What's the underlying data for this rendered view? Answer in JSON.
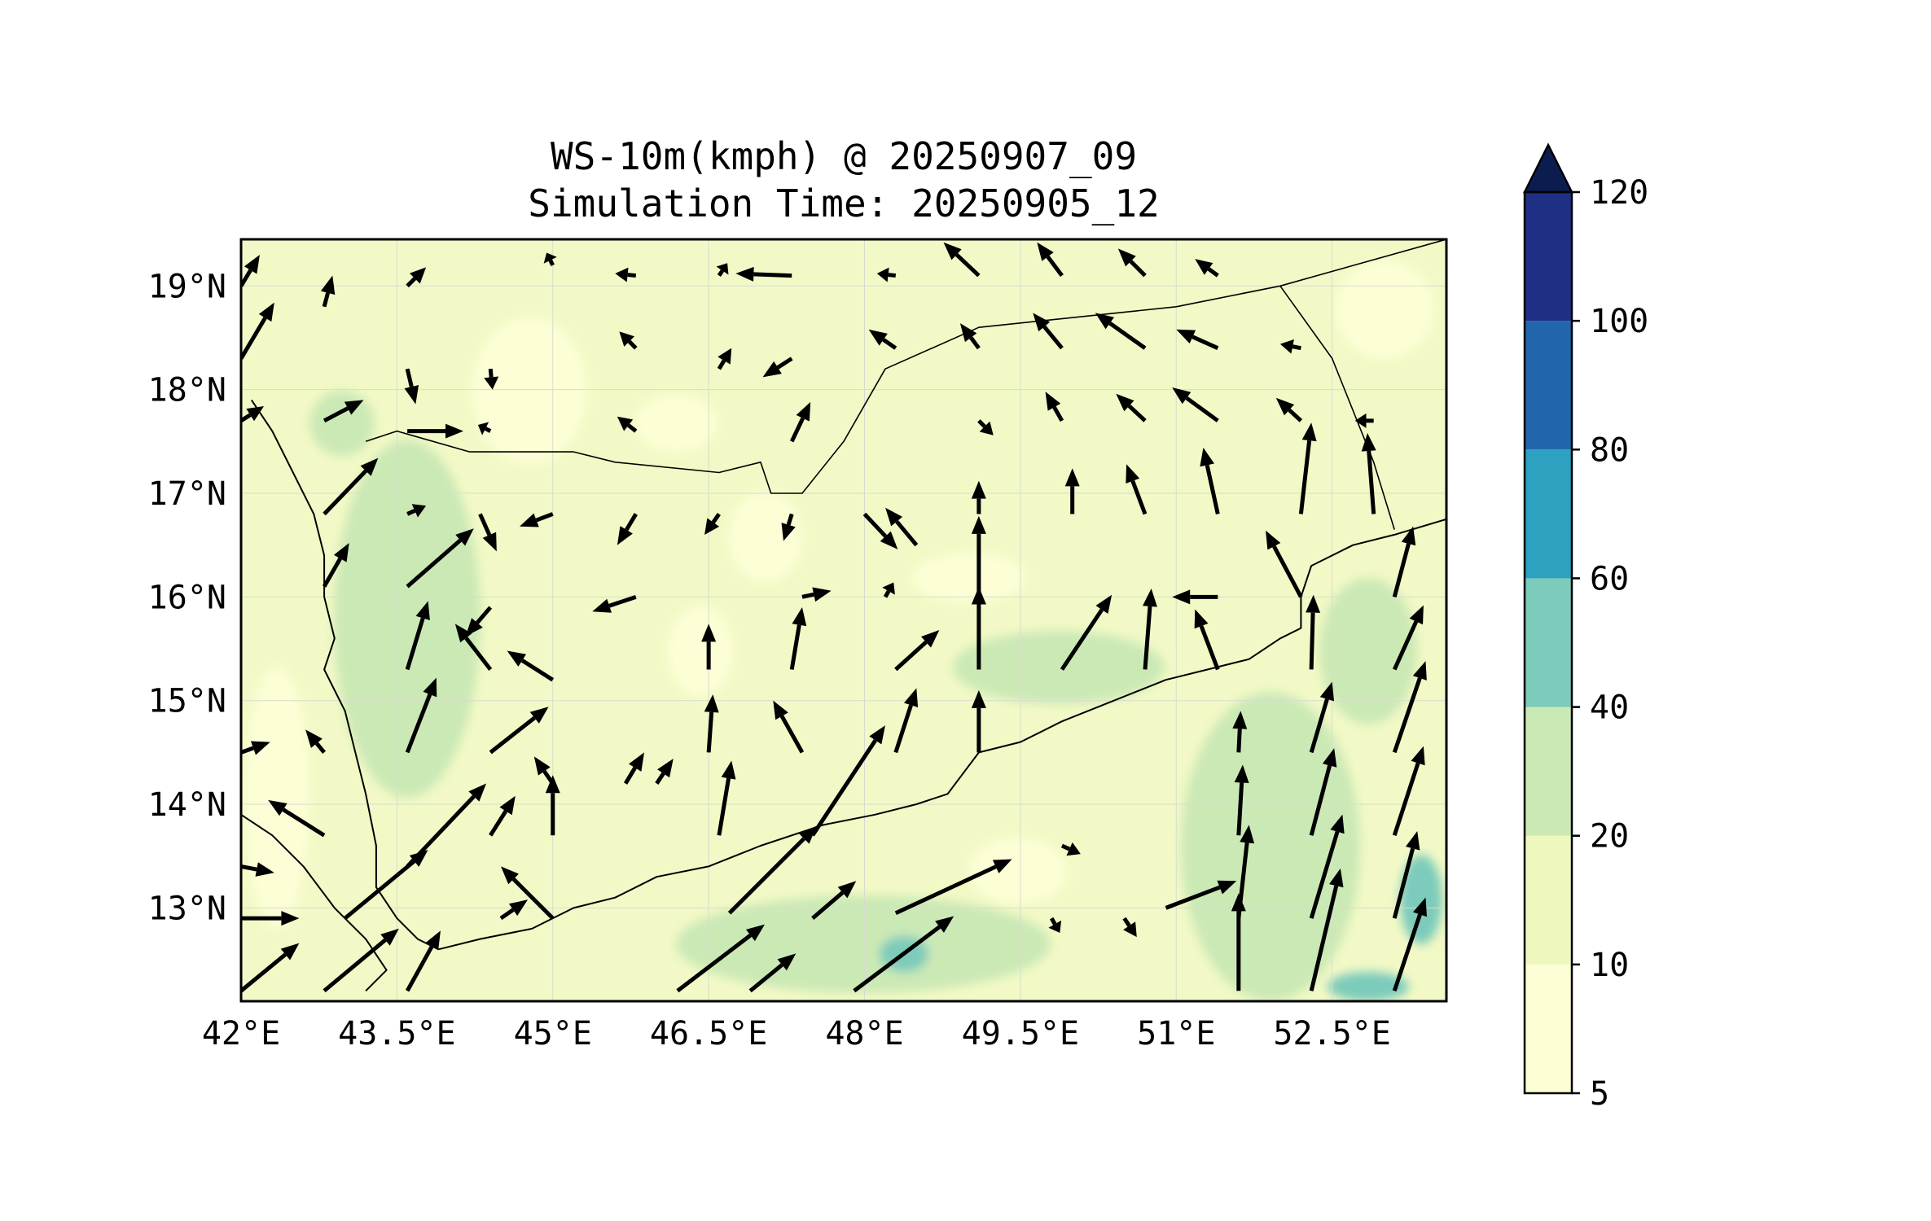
{
  "title_line1": "WS-10m(kmph) @ 20250907_09",
  "title_line2": "Simulation Time: 20250905_12",
  "map": {
    "lon_range": [
      42.0,
      53.6
    ],
    "lat_range": [
      12.1,
      19.45
    ],
    "lon_ticks": [
      "42°E",
      "43.5°E",
      "45°E",
      "46.5°E",
      "48°E",
      "49.5°E",
      "51°E",
      "52.5°E"
    ],
    "lat_ticks": [
      "19°N",
      "18°N",
      "17°N",
      "16°N",
      "15°N",
      "14°N",
      "13°N"
    ],
    "lon_tick_values": [
      42.0,
      43.5,
      45.0,
      46.5,
      48.0,
      49.5,
      51.0,
      52.5
    ],
    "lat_tick_values": [
      19,
      18,
      17,
      16,
      15,
      14,
      13
    ],
    "gridlines": true,
    "background_color": "#f2f9c6",
    "variable": "WS-10m",
    "units": "kmph"
  },
  "colorbar": {
    "levels": [
      "5",
      "10",
      "20",
      "40",
      "60",
      "80",
      "100",
      "120"
    ],
    "colors": [
      "#fdfed6",
      "#eef8be",
      "#cbe9b5",
      "#7ccbbb",
      "#2ca1c0",
      "#2166ac",
      "#1f2f85"
    ],
    "extend_color": "#0b1d4f",
    "extend": "max"
  },
  "wind_vectors": [
    {
      "lon": 42.0,
      "lat": 12.2,
      "u": 28,
      "v": 23
    },
    {
      "lon": 42.8,
      "lat": 12.2,
      "u": 36,
      "v": 30
    },
    {
      "lon": 43.6,
      "lat": 12.2,
      "u": 16,
      "v": 29
    },
    {
      "lon": 45.0,
      "lat": 12.9,
      "u": -25,
      "v": 25
    },
    {
      "lon": 46.2,
      "lat": 12.2,
      "u": 42,
      "v": 32
    },
    {
      "lon": 46.9,
      "lat": 12.2,
      "u": 22,
      "v": 18
    },
    {
      "lon": 47.9,
      "lat": 12.2,
      "u": 48,
      "v": 36
    },
    {
      "lon": 48.3,
      "lat": 12.95,
      "u": 56,
      "v": 26
    },
    {
      "lon": 47.5,
      "lat": 12.9,
      "u": 21,
      "v": 18
    },
    {
      "lon": 46.7,
      "lat": 12.95,
      "u": 42,
      "v": 42
    },
    {
      "lon": 42.0,
      "lat": 13.4,
      "u": 16,
      "v": -3
    },
    {
      "lon": 42.0,
      "lat": 12.9,
      "u": 28,
      "v": 0
    },
    {
      "lon": 43.0,
      "lat": 12.9,
      "u": 40,
      "v": 33
    },
    {
      "lon": 43.6,
      "lat": 13.4,
      "u": 38,
      "v": 40
    },
    {
      "lon": 42.8,
      "lat": 13.7,
      "u": -27,
      "v": 17
    },
    {
      "lon": 44.5,
      "lat": 12.9,
      "u": 13,
      "v": 9
    },
    {
      "lon": 44.4,
      "lat": 13.7,
      "u": 12,
      "v": 19
    },
    {
      "lon": 45.0,
      "lat": 13.7,
      "u": 0,
      "v": 29
    },
    {
      "lon": 47.5,
      "lat": 13.7,
      "u": 35,
      "v": 53
    },
    {
      "lon": 49.9,
      "lat": 13.6,
      "u": 9,
      "v": -4
    },
    {
      "lon": 50.9,
      "lat": 13.0,
      "u": 34,
      "v": 13
    },
    {
      "lon": 51.6,
      "lat": 12.2,
      "u": 0,
      "v": 47
    },
    {
      "lon": 51.6,
      "lat": 12.9,
      "u": 5,
      "v": 45
    },
    {
      "lon": 52.3,
      "lat": 12.2,
      "u": 14,
      "v": 59
    },
    {
      "lon": 52.3,
      "lat": 12.9,
      "u": 15,
      "v": 50
    },
    {
      "lon": 53.1,
      "lat": 12.2,
      "u": 15,
      "v": 45
    },
    {
      "lon": 53.1,
      "lat": 12.9,
      "u": 11,
      "v": 42
    },
    {
      "lon": 42.0,
      "lat": 14.5,
      "u": 14,
      "v": 5
    },
    {
      "lon": 42.8,
      "lat": 14.5,
      "u": -9,
      "v": 11
    },
    {
      "lon": 43.6,
      "lat": 14.5,
      "u": 14,
      "v": 36
    },
    {
      "lon": 44.4,
      "lat": 14.5,
      "u": 28,
      "v": 22
    },
    {
      "lon": 45.0,
      "lat": 14.2,
      "u": -9,
      "v": 13
    },
    {
      "lon": 45.7,
      "lat": 14.2,
      "u": 9,
      "v": 15
    },
    {
      "lon": 46.6,
      "lat": 13.7,
      "u": 6,
      "v": 36
    },
    {
      "lon": 47.4,
      "lat": 14.5,
      "u": -14,
      "v": 25
    },
    {
      "lon": 48.3,
      "lat": 14.5,
      "u": 10,
      "v": 31
    },
    {
      "lon": 49.1,
      "lat": 14.5,
      "u": 0,
      "v": 30
    },
    {
      "lon": 52.3,
      "lat": 13.7,
      "u": 11,
      "v": 42
    },
    {
      "lon": 52.3,
      "lat": 14.5,
      "u": 10,
      "v": 34
    },
    {
      "lon": 53.1,
      "lat": 13.7,
      "u": 14,
      "v": 43
    },
    {
      "lon": 53.1,
      "lat": 14.5,
      "u": 15,
      "v": 44
    },
    {
      "lon": 42.8,
      "lat": 16.1,
      "u": 12,
      "v": 21
    },
    {
      "lon": 43.6,
      "lat": 16.1,
      "u": 32,
      "v": 28
    },
    {
      "lon": 43.6,
      "lat": 15.3,
      "u": 10,
      "v": 33
    },
    {
      "lon": 44.4,
      "lat": 15.3,
      "u": -17,
      "v": 22
    },
    {
      "lon": 45.0,
      "lat": 15.2,
      "u": -22,
      "v": 14
    },
    {
      "lon": 43.6,
      "lat": 16.8,
      "u": 9,
      "v": 4
    },
    {
      "lon": 42.8,
      "lat": 16.8,
      "u": 26,
      "v": 27
    },
    {
      "lon": 42.0,
      "lat": 17.7,
      "u": 11,
      "v": 7
    },
    {
      "lon": 42.0,
      "lat": 18.3,
      "u": 16,
      "v": 27
    },
    {
      "lon": 42.0,
      "lat": 19.0,
      "u": 9,
      "v": 15
    },
    {
      "lon": 42.8,
      "lat": 17.7,
      "u": 19,
      "v": 10
    },
    {
      "lon": 43.6,
      "lat": 17.6,
      "u": 27,
      "v": 0
    },
    {
      "lon": 44.3,
      "lat": 16.8,
      "u": 8,
      "v": -18
    },
    {
      "lon": 45.0,
      "lat": 16.8,
      "u": -16,
      "v": -6
    },
    {
      "lon": 45.8,
      "lat": 16.8,
      "u": -9,
      "v": -15
    },
    {
      "lon": 45.8,
      "lat": 16.0,
      "u": -21,
      "v": -7
    },
    {
      "lon": 46.5,
      "lat": 15.3,
      "u": 0,
      "v": 22
    },
    {
      "lon": 47.3,
      "lat": 15.3,
      "u": 5,
      "v": 30
    },
    {
      "lon": 48.3,
      "lat": 15.3,
      "u": 21,
      "v": 19
    },
    {
      "lon": 49.1,
      "lat": 15.3,
      "u": 0,
      "v": 40
    },
    {
      "lon": 49.9,
      "lat": 15.3,
      "u": 24,
      "v": 36
    },
    {
      "lon": 50.7,
      "lat": 15.3,
      "u": 3,
      "v": 39
    },
    {
      "lon": 51.4,
      "lat": 15.3,
      "u": -11,
      "v": 29
    },
    {
      "lon": 52.3,
      "lat": 15.3,
      "u": 1,
      "v": 36
    },
    {
      "lon": 52.2,
      "lat": 16.0,
      "u": -17,
      "v": 32
    },
    {
      "lon": 53.1,
      "lat": 16.0,
      "u": 9,
      "v": 34
    },
    {
      "lon": 53.1,
      "lat": 15.3,
      "u": 14,
      "v": 31
    },
    {
      "lon": 51.4,
      "lat": 16.0,
      "u": -22,
      "v": 0
    },
    {
      "lon": 49.1,
      "lat": 16.8,
      "u": 0,
      "v": 16
    },
    {
      "lon": 48.5,
      "lat": 16.5,
      "u": -15,
      "v": 18
    },
    {
      "lon": 47.3,
      "lat": 16.8,
      "u": -4,
      "v": -13
    },
    {
      "lon": 46.6,
      "lat": 16.8,
      "u": -7,
      "v": -10
    },
    {
      "lon": 50.0,
      "lat": 16.8,
      "u": 0,
      "v": 22
    },
    {
      "lon": 50.7,
      "lat": 16.8,
      "u": -9,
      "v": 24
    },
    {
      "lon": 51.4,
      "lat": 16.8,
      "u": -7,
      "v": 32
    },
    {
      "lon": 52.2,
      "lat": 16.8,
      "u": 5,
      "v": 44
    },
    {
      "lon": 52.9,
      "lat": 16.8,
      "u": -3,
      "v": 39
    },
    {
      "lon": 49.1,
      "lat": 17.7,
      "u": 7,
      "v": -7
    },
    {
      "lon": 49.9,
      "lat": 17.7,
      "u": -8,
      "v": 14
    },
    {
      "lon": 50.7,
      "lat": 17.7,
      "u": -14,
      "v": 13
    },
    {
      "lon": 51.4,
      "lat": 17.7,
      "u": -22,
      "v": 16
    },
    {
      "lon": 52.2,
      "lat": 17.7,
      "u": -12,
      "v": 11
    },
    {
      "lon": 52.9,
      "lat": 17.7,
      "u": -9,
      "v": 0
    },
    {
      "lon": 49.1,
      "lat": 18.4,
      "u": -9,
      "v": 12
    },
    {
      "lon": 49.9,
      "lat": 18.4,
      "u": -14,
      "v": 17
    },
    {
      "lon": 50.7,
      "lat": 18.4,
      "u": -24,
      "v": 17
    },
    {
      "lon": 51.4,
      "lat": 18.4,
      "u": -20,
      "v": 9
    },
    {
      "lon": 52.2,
      "lat": 18.4,
      "u": -10,
      "v": 2
    },
    {
      "lon": 47.3,
      "lat": 17.5,
      "u": 9,
      "v": 19
    },
    {
      "lon": 47.3,
      "lat": 19.1,
      "u": -27,
      "v": 1
    },
    {
      "lon": 48.3,
      "lat": 18.4,
      "u": -13,
      "v": 9
    },
    {
      "lon": 48.3,
      "lat": 19.1,
      "u": -9,
      "v": 1
    },
    {
      "lon": 49.1,
      "lat": 19.1,
      "u": -17,
      "v": 16
    },
    {
      "lon": 49.9,
      "lat": 19.1,
      "u": -12,
      "v": 16
    },
    {
      "lon": 50.7,
      "lat": 19.1,
      "u": -13,
      "v": 13
    },
    {
      "lon": 51.4,
      "lat": 19.1,
      "u": -11,
      "v": 8
    },
    {
      "lon": 42.8,
      "lat": 18.8,
      "u": 4,
      "v": 15
    },
    {
      "lon": 43.6,
      "lat": 18.2,
      "u": 4,
      "v": -17
    },
    {
      "lon": 44.4,
      "lat": 18.2,
      "u": 1,
      "v": -10
    },
    {
      "lon": 45.8,
      "lat": 18.4,
      "u": -8,
      "v": 8
    },
    {
      "lon": 46.6,
      "lat": 18.2,
      "u": 6,
      "v": 10
    },
    {
      "lon": 47.3,
      "lat": 18.3,
      "u": -14,
      "v": -9
    },
    {
      "lon": 45.8,
      "lat": 17.6,
      "u": -9,
      "v": 7
    },
    {
      "lon": 44.4,
      "lat": 17.6,
      "u": -6,
      "v": 3
    },
    {
      "lon": 43.6,
      "lat": 19.0,
      "u": 9,
      "v": 9
    },
    {
      "lon": 45.0,
      "lat": 19.2,
      "u": -3,
      "v": 6
    },
    {
      "lon": 45.8,
      "lat": 19.1,
      "u": -10,
      "v": 1
    },
    {
      "lon": 46.6,
      "lat": 19.1,
      "u": 4,
      "v": 6
    },
    {
      "lon": 48.0,
      "lat": 16.8,
      "u": 16,
      "v": -17
    },
    {
      "lon": 46.0,
      "lat": 14.2,
      "u": 8,
      "v": 12
    },
    {
      "lon": 46.5,
      "lat": 14.5,
      "u": 2,
      "v": 28
    },
    {
      "lon": 44.4,
      "lat": 15.9,
      "u": -12,
      "v": -14
    },
    {
      "lon": 51.6,
      "lat": 14.5,
      "u": 1,
      "v": 20
    },
    {
      "lon": 51.6,
      "lat": 13.7,
      "u": 2,
      "v": 34
    },
    {
      "lon": 49.8,
      "lat": 12.9,
      "u": 4,
      "v": -7
    },
    {
      "lon": 50.5,
      "lat": 12.9,
      "u": 6,
      "v": -9
    },
    {
      "lon": 47.4,
      "lat": 16.0,
      "u": 14,
      "v": 3
    },
    {
      "lon": 48.2,
      "lat": 16.0,
      "u": 4,
      "v": 7
    },
    {
      "lon": 49.1,
      "lat": 16.0,
      "u": 0,
      "v": 39
    }
  ],
  "boundaries": {
    "coastline_main": [
      [
        43.9,
        12.6
      ],
      [
        44.3,
        12.7
      ],
      [
        44.8,
        12.8
      ],
      [
        45.2,
        13.0
      ],
      [
        45.6,
        13.1
      ],
      [
        46.0,
        13.3
      ],
      [
        46.5,
        13.4
      ],
      [
        47.0,
        13.6
      ],
      [
        47.6,
        13.8
      ],
      [
        48.1,
        13.9
      ],
      [
        48.5,
        14.0
      ],
      [
        48.8,
        14.1
      ],
      [
        49.1,
        14.5
      ],
      [
        49.5,
        14.6
      ],
      [
        49.9,
        14.8
      ],
      [
        50.4,
        15.0
      ],
      [
        50.9,
        15.2
      ],
      [
        51.3,
        15.3
      ],
      [
        51.7,
        15.4
      ],
      [
        52.0,
        15.6
      ],
      [
        52.2,
        15.7
      ],
      [
        52.2,
        16.0
      ],
      [
        52.3,
        16.3
      ],
      [
        52.7,
        16.5
      ],
      [
        53.1,
        16.6
      ],
      [
        53.6,
        16.75
      ]
    ],
    "coastline_red_sea": [
      [
        42.1,
        17.9
      ],
      [
        42.3,
        17.6
      ],
      [
        42.5,
        17.2
      ],
      [
        42.7,
        16.8
      ],
      [
        42.8,
        16.4
      ],
      [
        42.8,
        16.0
      ],
      [
        42.9,
        15.6
      ],
      [
        42.8,
        15.3
      ],
      [
        43.0,
        14.9
      ],
      [
        43.1,
        14.5
      ],
      [
        43.2,
        14.1
      ],
      [
        43.3,
        13.6
      ],
      [
        43.3,
        13.2
      ],
      [
        43.5,
        12.9
      ],
      [
        43.7,
        12.7
      ],
      [
        43.9,
        12.6
      ]
    ],
    "africa_coast": [
      [
        42.0,
        13.9
      ],
      [
        42.3,
        13.7
      ],
      [
        42.6,
        13.4
      ],
      [
        42.9,
        13.0
      ],
      [
        43.2,
        12.7
      ],
      [
        43.4,
        12.4
      ],
      [
        43.2,
        12.2
      ]
    ],
    "saudi_border": [
      [
        43.2,
        17.5
      ],
      [
        43.5,
        17.6
      ],
      [
        44.2,
        17.4
      ],
      [
        45.2,
        17.4
      ],
      [
        45.6,
        17.3
      ],
      [
        46.6,
        17.2
      ],
      [
        47.0,
        17.3
      ],
      [
        47.1,
        17.0
      ],
      [
        47.4,
        17.0
      ],
      [
        47.8,
        17.5
      ],
      [
        48.2,
        18.2
      ],
      [
        49.1,
        18.6
      ],
      [
        51.0,
        18.8
      ],
      [
        52.0,
        19.0
      ],
      [
        53.6,
        19.45
      ]
    ],
    "oman_border": [
      [
        52.0,
        19.0
      ],
      [
        52.5,
        18.3
      ],
      [
        52.7,
        17.8
      ],
      [
        52.9,
        17.3
      ],
      [
        53.1,
        16.65
      ]
    ]
  }
}
